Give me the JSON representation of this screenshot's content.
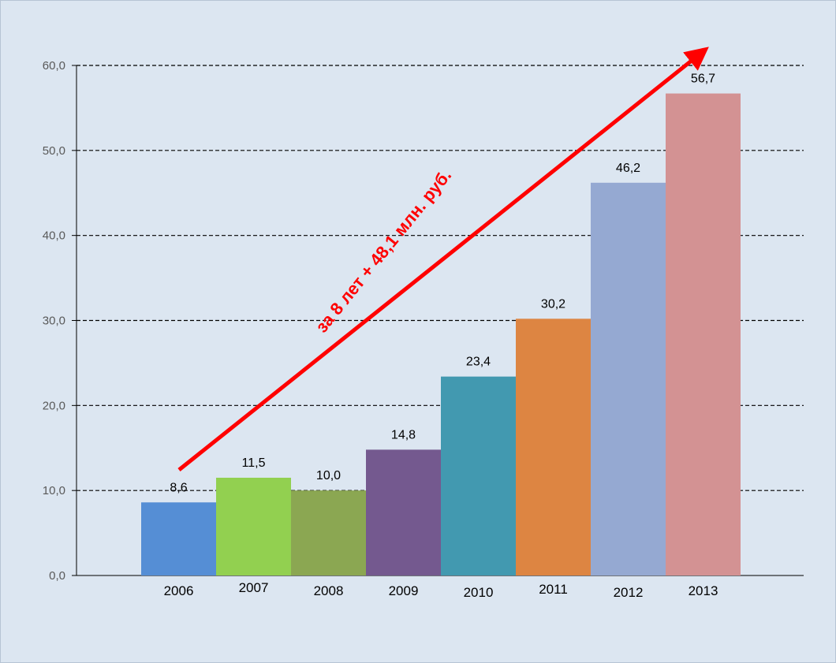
{
  "chart_data": {
    "type": "bar",
    "categories": [
      "2006",
      "2007",
      "2008",
      "2009",
      "2010",
      "2011",
      "2012",
      "2013"
    ],
    "values": [
      8.6,
      11.5,
      10.0,
      14.8,
      23.4,
      30.2,
      46.2,
      56.7
    ],
    "value_labels": [
      "8,6",
      "11,5",
      "10,0",
      "14,8",
      "23,4",
      "30,2",
      "46,2",
      "56,7"
    ],
    "bar_colors": [
      "#558ed5",
      "#92d050",
      "#8ba752",
      "#74598f",
      "#4299b0",
      "#dd8542",
      "#95a9d2",
      "#d39293"
    ],
    "ylim": [
      0,
      60
    ],
    "yticks": [
      0,
      10,
      20,
      30,
      40,
      50,
      60
    ],
    "ytick_labels": [
      "0,0",
      "10,0",
      "20,0",
      "30,0",
      "40,0",
      "50,0",
      "60,0"
    ],
    "grid": "horizontal dashed",
    "title": "",
    "xlabel": "",
    "ylabel": "",
    "annotation": {
      "text": "за 8 лет + 48,1 млн. руб.",
      "color": "#ff0000",
      "arrow": "red trend arrow rising from 2006 to 2013"
    }
  }
}
